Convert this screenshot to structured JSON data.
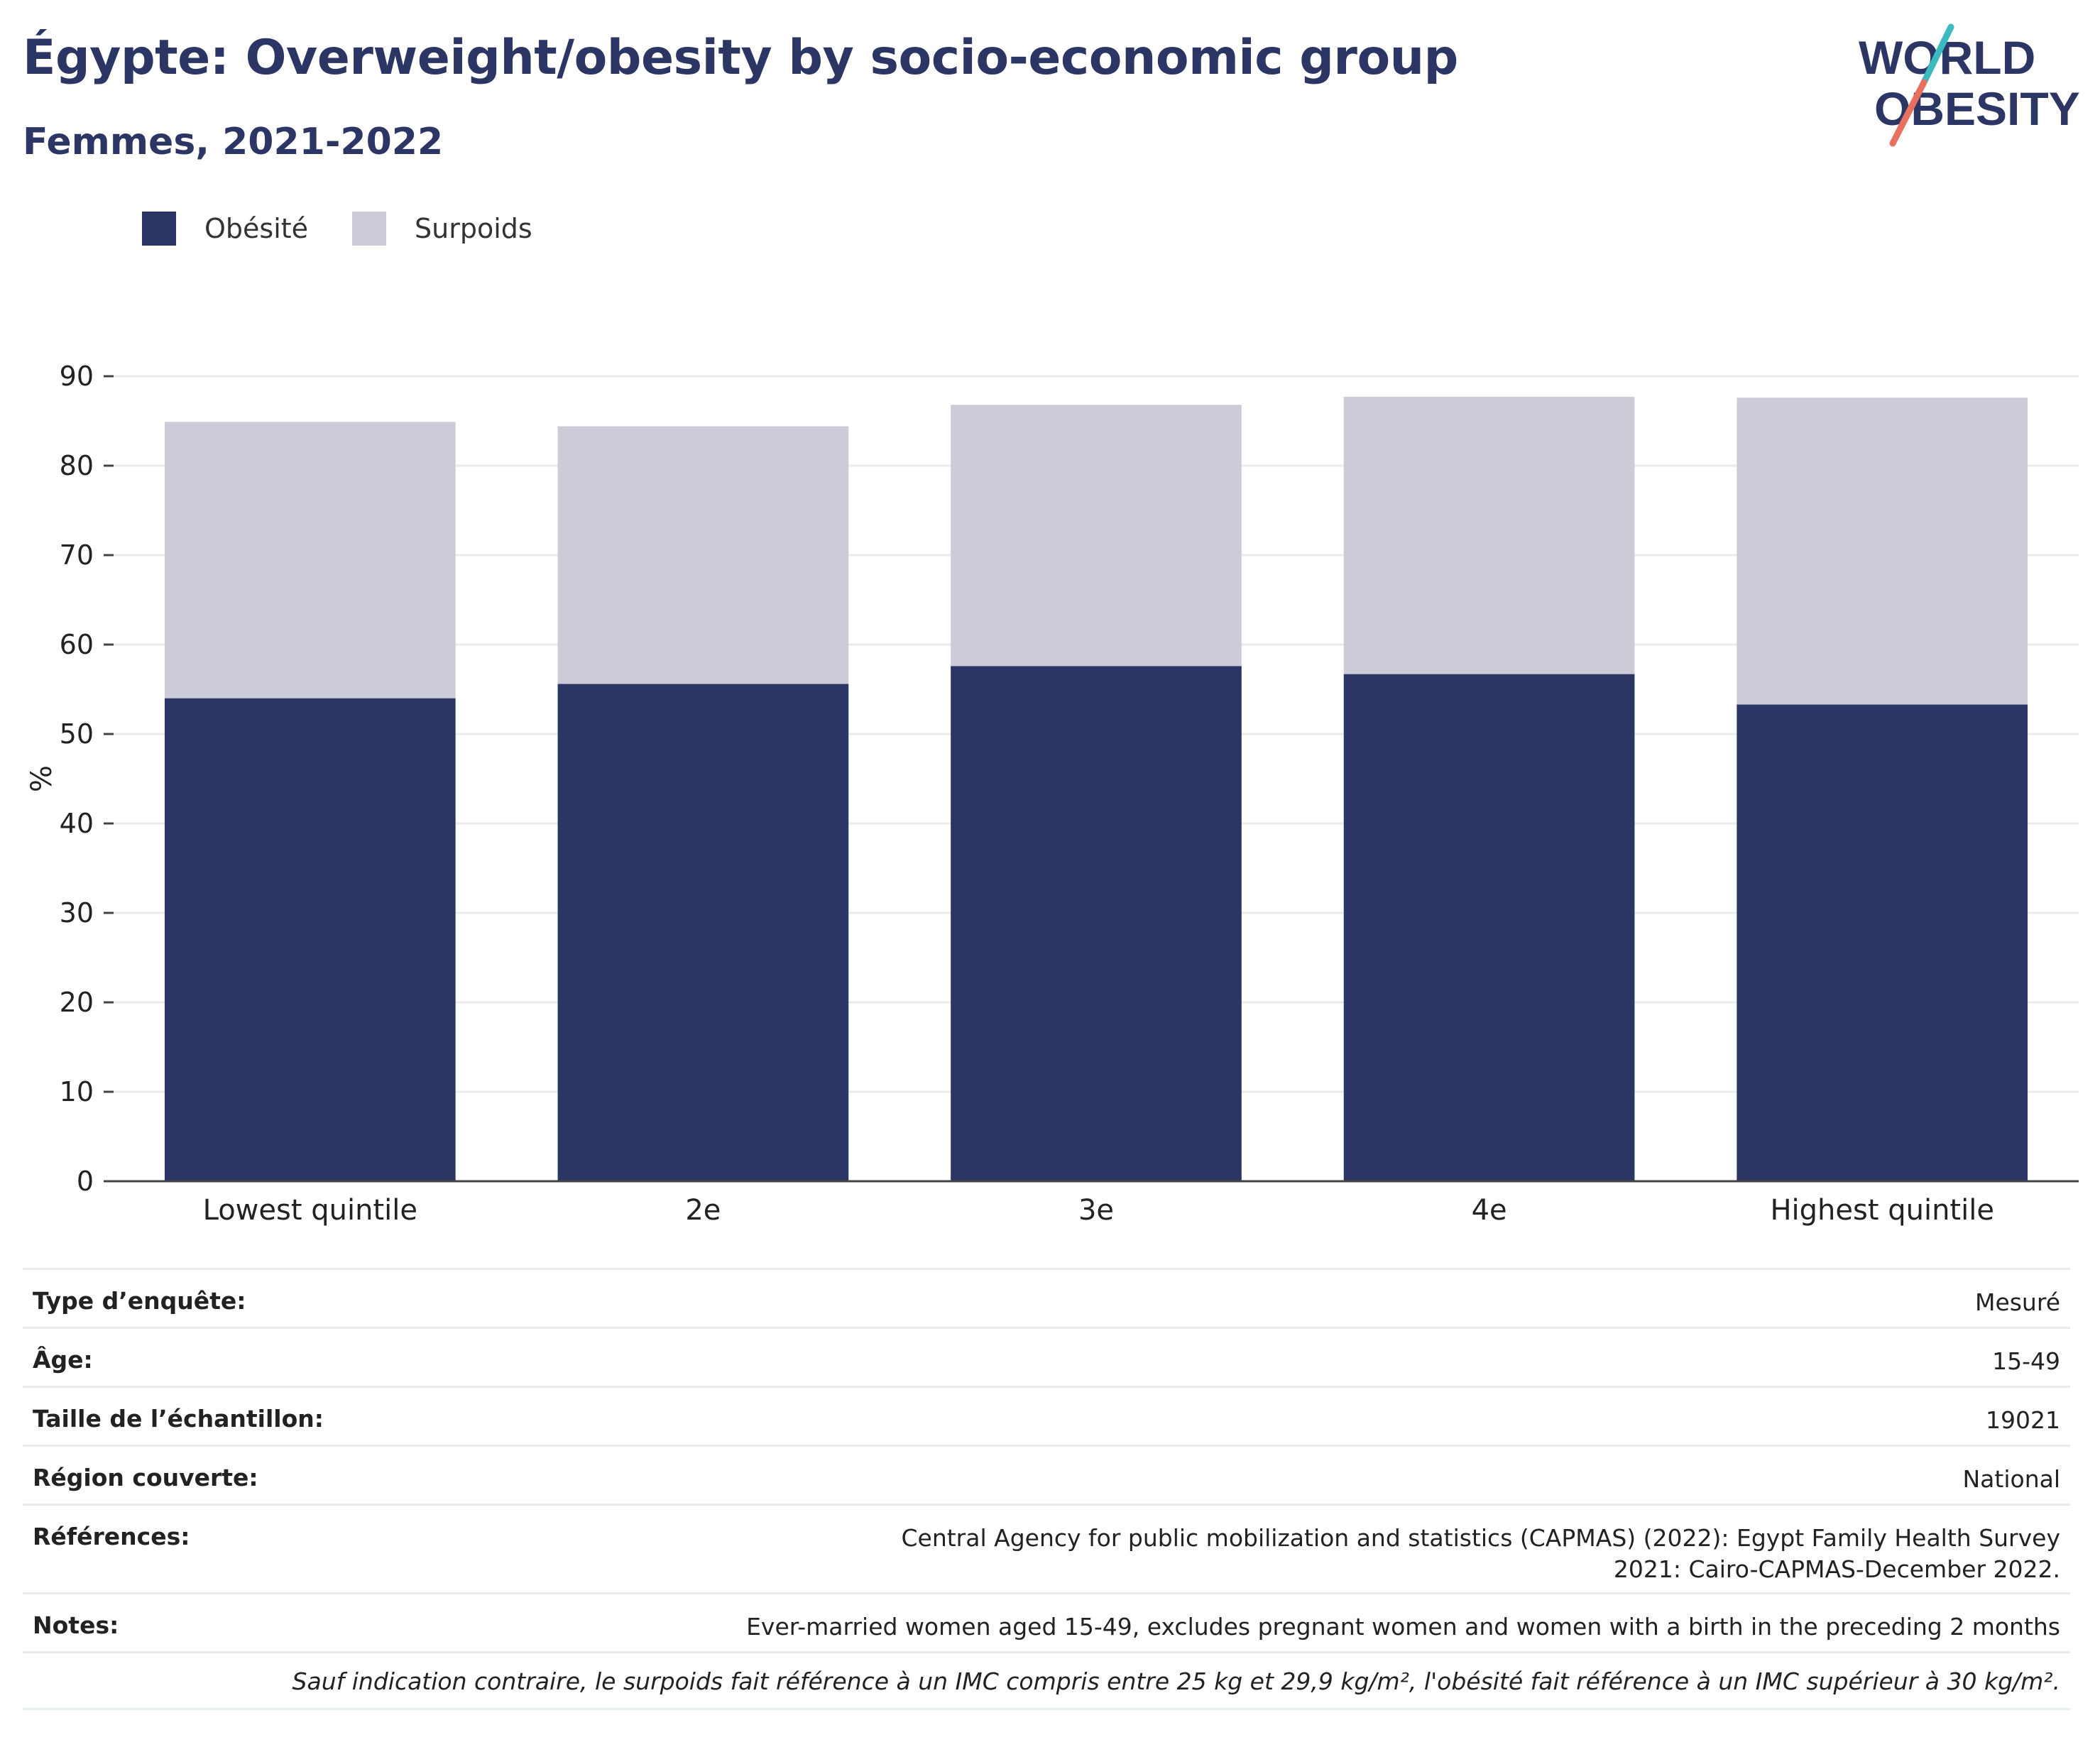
{
  "header": {
    "title": "Égypte: Overweight/obesity by socio-economic group",
    "subtitle": "Femmes, 2021-2022"
  },
  "logo": {
    "line1": "WORLD",
    "line2": "OBESITY",
    "colors": {
      "text": "#2b3664",
      "slash_top": "#3bbbc0",
      "slash_bottom": "#e8705f"
    }
  },
  "legend": [
    {
      "label": "Obésité",
      "color": "#2b3664"
    },
    {
      "label": "Surpoids",
      "color": "#cbccd8"
    }
  ],
  "chart_data": {
    "type": "bar",
    "stacked": true,
    "categories": [
      "Lowest quintile",
      "2e",
      "3e",
      "4e",
      "Highest quintile"
    ],
    "series": [
      {
        "name": "Obésité",
        "color": "#2b3664",
        "values": [
          54.0,
          55.6,
          57.6,
          56.7,
          53.3
        ]
      },
      {
        "name": "Surpoids",
        "color": "#cbccd8",
        "values": [
          30.9,
          28.8,
          29.2,
          31.0,
          34.3
        ]
      }
    ],
    "ylabel": "%",
    "xlabel": "",
    "ylim": [
      0,
      90
    ],
    "yticks": [
      0,
      10,
      20,
      30,
      40,
      50,
      60,
      70,
      80,
      90
    ],
    "grid": true,
    "legend_position": "top-left"
  },
  "info": {
    "rows": [
      {
        "key": "Type d’enquête:",
        "value": "Mesuré"
      },
      {
        "key": "Âge:",
        "value": "15-49"
      },
      {
        "key": "Taille de l’échantillon:",
        "value": "19021"
      },
      {
        "key": "Région couverte:",
        "value": "National"
      },
      {
        "key": "Références:",
        "value": "Central Agency for public mobilization and statistics (CAPMAS) (2022): Egypt Family Health Survey 2021: Cairo-CAPMAS-December 2022."
      },
      {
        "key": "Notes:",
        "value": "Ever-married women aged 15-49, excludes pregnant women and women with a birth in the preceding 2 months"
      }
    ],
    "footnote": "Sauf indication contraire, le surpoids fait référence à un IMC compris entre 25 kg et 29,9 kg/m², l'obésité fait référence à un IMC supérieur à 30 kg/m²."
  }
}
